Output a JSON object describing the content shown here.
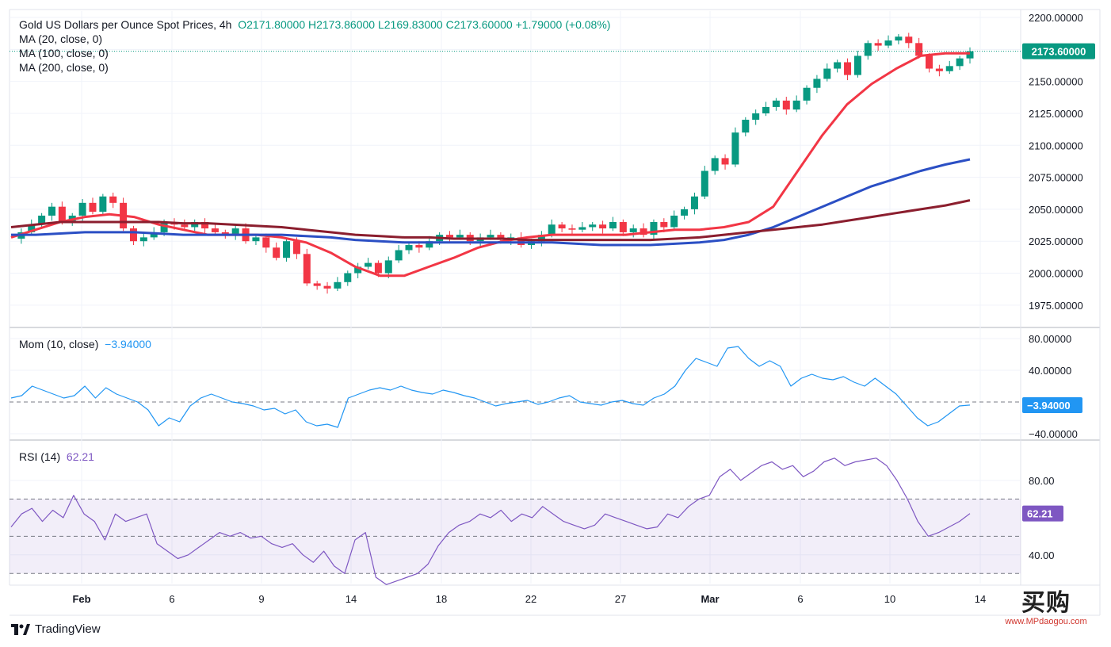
{
  "header": {
    "symbol": "Gold US Dollars per Ounce Spot Prices, 4h",
    "ohlc": "O2171.80000 H2173.86000 L2169.83000 C2173.60000 +1.79000 (+0.08%)",
    "ma20": "MA (20, close, 0)",
    "ma100": "MA (100, close, 0)",
    "ma200": "MA (200, close, 0)"
  },
  "footer": {
    "brand": "TradingView"
  },
  "watermark": {
    "name": "买购",
    "url": "www.MPdaogou.com"
  },
  "chart_data": [
    {
      "type": "candlestick",
      "title": "Gold US Dollars per Ounce Spot Prices, 4h",
      "ylim": [
        1960,
        2205
      ],
      "yticks": [
        "2200.00000",
        "2175.00000",
        "2150.00000",
        "2125.00000",
        "2100.00000",
        "2075.00000",
        "2050.00000",
        "2025.00000",
        "2000.00000",
        "1975.00000"
      ],
      "ytick_values": [
        2200,
        2175,
        2150,
        2125,
        2100,
        2075,
        2050,
        2025,
        2000,
        1975
      ],
      "last_price": 2173.6,
      "last_price_label": "2173.60000",
      "xticks": [
        "Feb",
        "6",
        "9",
        "14",
        "18",
        "22",
        "27",
        "Mar",
        "6",
        "10",
        "14"
      ],
      "close_path": [
        2027,
        2032,
        2038,
        2045,
        2052,
        2040,
        2045,
        2055,
        2048,
        2060,
        2055,
        2035,
        2025,
        2028,
        2032,
        2040,
        2038,
        2036,
        2040,
        2035,
        2032,
        2030,
        2035,
        2025,
        2028,
        2020,
        2012,
        2025,
        2015,
        1992,
        1990,
        1988,
        1993,
        2000,
        2005,
        2008,
        2000,
        2010,
        2018,
        2022,
        2020,
        2025,
        2030,
        2028,
        2030,
        2025,
        2028,
        2030,
        2026,
        2028,
        2022,
        2025,
        2030,
        2038,
        2035,
        2034,
        2036,
        2038,
        2035,
        2040,
        2032,
        2035,
        2030,
        2040,
        2036,
        2045,
        2050,
        2060,
        2080,
        2090,
        2085,
        2110,
        2120,
        2125,
        2130,
        2135,
        2128,
        2135,
        2145,
        2152,
        2160,
        2165,
        2155,
        2170,
        2180,
        2178,
        2182,
        2185,
        2180,
        2170,
        2160,
        2158,
        2162,
        2168,
        2173.6
      ],
      "series": [
        {
          "name": "MA (20, close, 0)",
          "color": "#f23645",
          "values": [
            2028,
            2034,
            2040,
            2044,
            2046,
            2044,
            2038,
            2034,
            2030,
            2030,
            2030,
            2028,
            2024,
            2016,
            2005,
            1998,
            1998,
            2005,
            2012,
            2020,
            2025,
            2028,
            2030,
            2030,
            2030,
            2030,
            2032,
            2034,
            2034,
            2036,
            2040,
            2052,
            2080,
            2108,
            2132,
            2148,
            2160,
            2170,
            2172,
            2172
          ]
        },
        {
          "name": "MA (100, close, 0)",
          "color": "#2b4fc4",
          "values": [
            2030,
            2030,
            2031,
            2032,
            2032,
            2032,
            2031,
            2030,
            2030,
            2030,
            2030,
            2030,
            2029,
            2028,
            2026,
            2025,
            2024,
            2024,
            2024,
            2024,
            2024,
            2024,
            2024,
            2023,
            2022,
            2022,
            2022,
            2023,
            2024,
            2026,
            2030,
            2036,
            2044,
            2052,
            2060,
            2068,
            2074,
            2080,
            2085,
            2089
          ]
        },
        {
          "name": "MA (200, close, 0)",
          "color": "#8b1e2e",
          "values": [
            2036,
            2038,
            2040,
            2040,
            2040,
            2040,
            2040,
            2039,
            2039,
            2038,
            2037,
            2036,
            2034,
            2032,
            2030,
            2029,
            2028,
            2028,
            2027,
            2027,
            2027,
            2026,
            2026,
            2026,
            2026,
            2026,
            2026,
            2027,
            2028,
            2030,
            2032,
            2034,
            2036,
            2038,
            2041,
            2044,
            2047,
            2050,
            2053,
            2057
          ]
        }
      ]
    },
    {
      "type": "line",
      "title": "Mom (10, close)",
      "value_label": "−3.94000",
      "last": -3.94,
      "ylim": [
        -45,
        90
      ],
      "yticks": [
        "80.00000",
        "40.00000",
        "−40.00000"
      ],
      "ytick_values": [
        80,
        40,
        -40
      ],
      "color": "#2196f3",
      "values": [
        5,
        8,
        20,
        15,
        10,
        5,
        8,
        20,
        5,
        18,
        10,
        5,
        0,
        -10,
        -30,
        -20,
        -25,
        -5,
        5,
        10,
        5,
        0,
        -2,
        -5,
        -10,
        -8,
        -15,
        -10,
        -25,
        -30,
        -28,
        -32,
        5,
        10,
        15,
        18,
        15,
        20,
        15,
        12,
        10,
        15,
        12,
        8,
        5,
        0,
        -5,
        -2,
        0,
        2,
        -3,
        0,
        5,
        8,
        0,
        -2,
        -4,
        0,
        2,
        -2,
        -4,
        5,
        10,
        20,
        40,
        55,
        50,
        45,
        68,
        70,
        55,
        45,
        52,
        45,
        20,
        30,
        35,
        30,
        28,
        32,
        25,
        20,
        30,
        20,
        10,
        -5,
        -20,
        -30,
        -25,
        -15,
        -5,
        -3.94
      ]
    },
    {
      "type": "line",
      "title": "RSI (14)",
      "value_label": "62.21",
      "last": 62.21,
      "ylim": [
        25,
        100
      ],
      "yticks": [
        "80.00",
        "40.00"
      ],
      "ytick_values": [
        80,
        40
      ],
      "bands": [
        70,
        50,
        30
      ],
      "color": "#7e57c2",
      "values": [
        55,
        62,
        65,
        58,
        64,
        60,
        72,
        62,
        58,
        48,
        62,
        58,
        60,
        62,
        46,
        42,
        38,
        40,
        44,
        48,
        52,
        50,
        52,
        49,
        50,
        46,
        44,
        46,
        40,
        36,
        42,
        34,
        30,
        48,
        52,
        28,
        24,
        26,
        28,
        30,
        35,
        45,
        52,
        56,
        58,
        62,
        60,
        64,
        58,
        62,
        60,
        66,
        62,
        58,
        56,
        54,
        56,
        62,
        60,
        58,
        56,
        54,
        55,
        62,
        60,
        66,
        70,
        72,
        82,
        86,
        80,
        84,
        88,
        90,
        86,
        88,
        82,
        85,
        90,
        92,
        88,
        90,
        91,
        92,
        88,
        80,
        70,
        58,
        50,
        52,
        55,
        58,
        62.21
      ]
    }
  ]
}
